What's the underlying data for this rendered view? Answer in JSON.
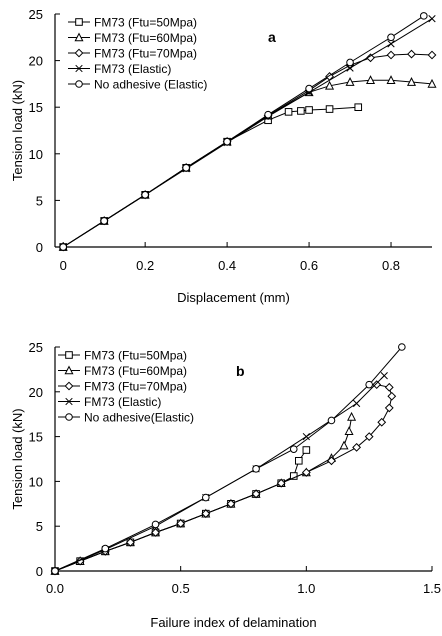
{
  "chart_data": [
    {
      "type": "line",
      "panel_letter": "a",
      "xlabel": "Displacement (mm)",
      "ylabel": "Tension load (kN)",
      "xlim": [
        -0.02,
        0.9
      ],
      "ylim": [
        0,
        25
      ],
      "xticks": [
        0,
        0.2,
        0.4,
        0.6,
        0.8
      ],
      "xtick_labels": [
        "0",
        "0.2",
        "0.4",
        "0.6",
        "0.8"
      ],
      "yticks": [
        0,
        5,
        10,
        15,
        20,
        25
      ],
      "ytick_labels": [
        "0",
        "5",
        "10",
        "15",
        "20",
        "25"
      ],
      "legend_position": "upper-left",
      "series": [
        {
          "name": "FM73 (Ftu=50Mpa)",
          "marker": "square",
          "x": [
            0,
            0.1,
            0.2,
            0.3,
            0.4,
            0.5,
            0.55,
            0.58,
            0.6,
            0.65,
            0.72
          ],
          "y": [
            0,
            2.8,
            5.6,
            8.5,
            11.3,
            13.6,
            14.5,
            14.6,
            14.7,
            14.8,
            15.0
          ]
        },
        {
          "name": "FM73 (Ftu=60Mpa)",
          "marker": "triangle",
          "x": [
            0,
            0.1,
            0.2,
            0.3,
            0.4,
            0.5,
            0.6,
            0.65,
            0.7,
            0.75,
            0.8,
            0.85,
            0.9
          ],
          "y": [
            0,
            2.8,
            5.6,
            8.5,
            11.3,
            14.1,
            16.6,
            17.3,
            17.7,
            17.9,
            17.9,
            17.7,
            17.5
          ]
        },
        {
          "name": "FM73 (Ftu=70Mpa)",
          "marker": "diamond",
          "x": [
            0,
            0.1,
            0.2,
            0.3,
            0.4,
            0.5,
            0.6,
            0.65,
            0.7,
            0.75,
            0.8,
            0.85,
            0.9
          ],
          "y": [
            0,
            2.8,
            5.6,
            8.5,
            11.3,
            14.1,
            16.8,
            18.3,
            19.5,
            20.3,
            20.6,
            20.7,
            20.6
          ]
        },
        {
          "name": "FM73 (Elastic)",
          "marker": "x",
          "x": [
            0,
            0.1,
            0.2,
            0.3,
            0.4,
            0.5,
            0.6,
            0.7,
            0.8,
            0.9
          ],
          "y": [
            0,
            2.8,
            5.6,
            8.4,
            11.2,
            14.0,
            16.6,
            19.2,
            21.8,
            24.5
          ]
        },
        {
          "name": "No adhesive (Elastic)",
          "marker": "circle",
          "x": [
            0,
            0.1,
            0.2,
            0.3,
            0.4,
            0.5,
            0.6,
            0.7,
            0.8,
            0.88
          ],
          "y": [
            0,
            2.8,
            5.6,
            8.5,
            11.3,
            14.2,
            17.0,
            19.8,
            22.5,
            24.8
          ]
        }
      ]
    },
    {
      "type": "line",
      "panel_letter": "b",
      "xlabel": "Failure index of delamination",
      "ylabel": "Tension load (kN)",
      "xlim": [
        0,
        1.5
      ],
      "ylim": [
        0,
        25
      ],
      "xticks": [
        0,
        0.5,
        1.0,
        1.5
      ],
      "xtick_labels": [
        "0.0",
        "0.5",
        "1.0",
        "1.5"
      ],
      "yticks": [
        0,
        5,
        10,
        15,
        20,
        25
      ],
      "ytick_labels": [
        "0",
        "5",
        "10",
        "15",
        "20",
        "25"
      ],
      "legend_position": "upper-left",
      "series": [
        {
          "name": "FM73 (Ftu=50Mpa)",
          "marker": "square",
          "x": [
            0,
            0.1,
            0.2,
            0.3,
            0.4,
            0.5,
            0.6,
            0.7,
            0.8,
            0.9,
            0.95,
            0.97,
            1.0
          ],
          "y": [
            0,
            1.1,
            2.2,
            3.2,
            4.3,
            5.3,
            6.4,
            7.5,
            8.6,
            9.8,
            10.6,
            12.3,
            13.5
          ]
        },
        {
          "name": "FM73 (Ftu=60Mpa)",
          "marker": "triangle",
          "x": [
            0,
            0.1,
            0.2,
            0.3,
            0.4,
            0.5,
            0.6,
            0.7,
            0.8,
            0.9,
            1.0,
            1.1,
            1.15,
            1.17,
            1.18
          ],
          "y": [
            0,
            1.1,
            2.2,
            3.2,
            4.3,
            5.3,
            6.4,
            7.5,
            8.6,
            9.8,
            11.0,
            12.6,
            14.0,
            15.6,
            17.2
          ]
        },
        {
          "name": "FM73 (Ftu=70Mpa)",
          "marker": "diamond",
          "x": [
            0,
            0.1,
            0.2,
            0.3,
            0.4,
            0.5,
            0.6,
            0.7,
            0.8,
            0.9,
            1.0,
            1.1,
            1.2,
            1.25,
            1.3,
            1.33,
            1.34,
            1.33,
            1.28
          ],
          "y": [
            0,
            1.1,
            2.2,
            3.2,
            4.3,
            5.3,
            6.4,
            7.5,
            8.6,
            9.8,
            11.0,
            12.3,
            13.8,
            15.0,
            16.6,
            18.2,
            19.5,
            20.5,
            20.8
          ]
        },
        {
          "name": "FM73 (Elastic)",
          "marker": "x",
          "x": [
            0,
            0.2,
            0.4,
            0.6,
            0.8,
            1.0,
            1.2,
            1.31
          ],
          "y": [
            0,
            2.4,
            5.0,
            8.2,
            11.4,
            15.0,
            18.7,
            21.8
          ]
        },
        {
          "name": "No adhesive(Elastic)",
          "marker": "circle",
          "x": [
            0,
            0.2,
            0.4,
            0.6,
            0.8,
            0.95,
            1.1,
            1.25,
            1.38
          ],
          "y": [
            0,
            2.5,
            5.2,
            8.2,
            11.4,
            13.6,
            16.8,
            20.8,
            25.0
          ]
        }
      ]
    }
  ]
}
